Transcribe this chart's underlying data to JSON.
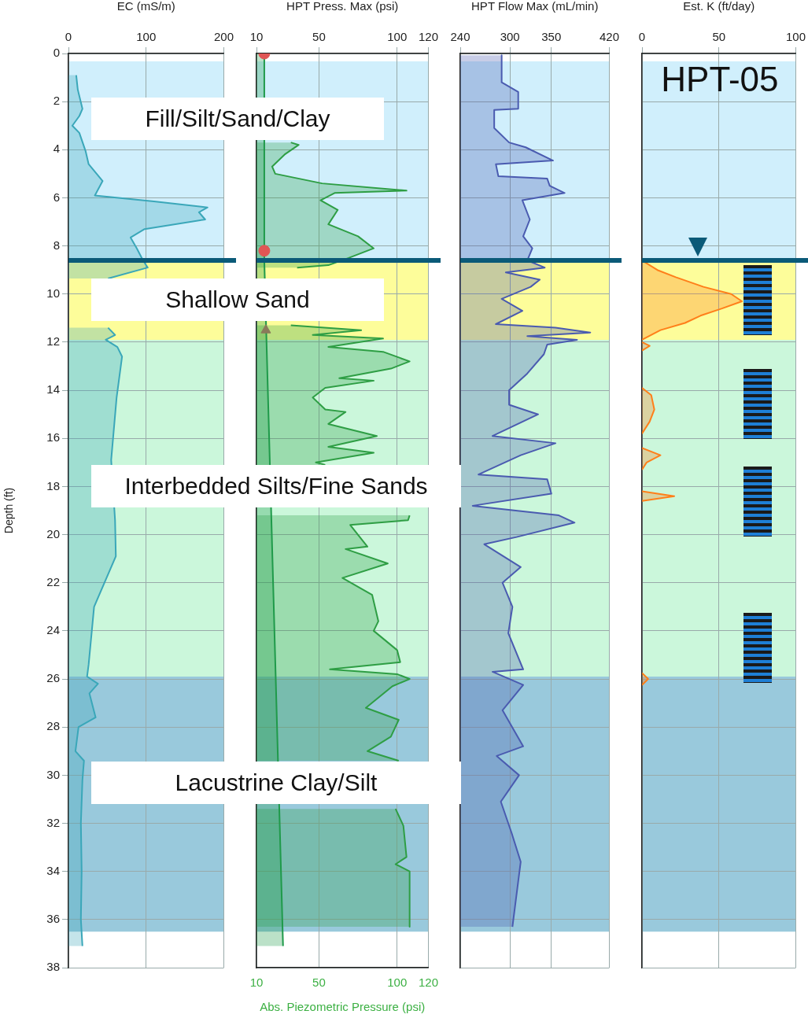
{
  "chart_data": [
    {
      "type": "area",
      "orientation": "horizontal",
      "xlabel": "EC (mS/m)",
      "ylabel": "Depth (ft)",
      "xlim": [
        0,
        200
      ],
      "xticks": [
        0,
        100,
        200
      ],
      "ylim": [
        38,
        0
      ],
      "yticks": [
        0,
        2,
        4,
        6,
        8,
        10,
        12,
        14,
        16,
        18,
        20,
        22,
        24,
        26,
        28,
        30,
        32,
        34,
        36,
        38
      ],
      "grid": true,
      "series": [
        {
          "color": "#3aa7b9",
          "x": [
            0.9,
            1.5,
            2.3,
            2.6,
            3.0,
            3.3,
            4.05,
            4.6,
            5.3,
            5.9,
            6.15,
            6.4,
            6.6,
            6.9,
            7.3,
            7.65,
            8.1,
            8.6,
            8.9,
            9.35,
            9.6,
            10.2,
            10.8,
            11.4,
            11.7,
            11.9,
            12.2,
            12.6,
            14.3,
            16.9,
            19.4,
            20.9,
            23.0,
            25.4,
            25.9,
            26.2,
            26.6,
            27.6,
            28.0,
            29.0,
            29.4,
            30.2,
            32,
            34,
            36,
            37.1
          ],
          "values": [
            10,
            12,
            18,
            14,
            5,
            14,
            22,
            26,
            44,
            34,
            110,
            179,
            168,
            176,
            98,
            80,
            88,
            96,
            102,
            51,
            null,
            null,
            null,
            51,
            60,
            48,
            63,
            69,
            62,
            55,
            60,
            61,
            33,
            26,
            24,
            38,
            27,
            35,
            13,
            9,
            20,
            18,
            16,
            17,
            16,
            18
          ]
        }
      ],
      "bands": [
        {
          "axis": "y",
          "from": 0.33,
          "to": 8.6,
          "label": "Fill/Silt/Sand/Clay",
          "color": "#d0effc"
        },
        {
          "axis": "y",
          "from": 8.6,
          "to": 11.9,
          "label": "Shallow Sand",
          "color": "#fdfd9a"
        },
        {
          "axis": "y",
          "from": 11.9,
          "to": 25.9,
          "label": "Interbedded Silts/Fine Sands",
          "color": "#cbf7db"
        },
        {
          "axis": "y",
          "from": 25.9,
          "to": 36.5,
          "label": "Lacustrine Clay/Silt",
          "color": "#99c9dc"
        }
      ],
      "ref_lines": [
        {
          "axis": "y",
          "value": 8.6,
          "color": "#0b5a78"
        }
      ]
    },
    {
      "type": "area",
      "orientation": "horizontal",
      "xlabel": "HPT Press. Max (psi)",
      "x2label": "Abs. Piezometric Pressure (psi)",
      "xlim": [
        10,
        120
      ],
      "xticks": [
        10,
        50,
        100,
        120
      ],
      "x2lim": [
        10,
        120
      ],
      "x2ticks": [
        10,
        50,
        100,
        120
      ],
      "ylim": [
        38,
        0
      ],
      "yticks": [
        0,
        2,
        4,
        6,
        8,
        10,
        12,
        14,
        16,
        18,
        20,
        22,
        24,
        26,
        28,
        30,
        32,
        34,
        36,
        38
      ],
      "grid": true,
      "tick_labels": "x",
      "series": [
        {
          "color": "#2e9e44",
          "x": [
            3.7,
            3.8,
            4.2,
            4.7,
            5.0,
            5.4,
            5.7,
            5.8,
            6.1,
            6.5,
            7.1,
            7.6,
            8.1,
            8.5,
            8.8,
            8.9,
            9.4,
            10.3,
            11.3,
            11.5,
            11.7,
            11.85,
            12.2,
            12.4,
            12.8,
            13.1,
            13.5,
            13.6,
            13.9,
            14.3,
            14.8,
            14.9,
            15.4,
            15.9,
            16.35,
            16.6,
            17.0,
            17.1,
            18.0,
            19.2,
            19.4,
            19.6,
            20.5,
            20.6,
            21.2,
            21.8,
            22.5,
            23.6,
            24.0,
            24.8,
            25.3,
            25.6,
            25.8,
            26.0,
            26.3,
            27.2,
            27.7,
            28.4,
            29.0,
            29.4,
            30.3,
            31.4,
            32.1,
            33.4,
            33.7,
            34.0,
            36.3
          ],
          "values": [
            32,
            37,
            28,
            20,
            22,
            52,
            106,
            60,
            51,
            62,
            56,
            75,
            85,
            69,
            56,
            36,
            null,
            null,
            32,
            77,
            46,
            91,
            56,
            91,
            108,
            96,
            63,
            85,
            54,
            46,
            54,
            67,
            56,
            87,
            56,
            85,
            48,
            54,
            null,
            108,
            107,
            70,
            81,
            67,
            94,
            65,
            84,
            88,
            85,
            100,
            102,
            57,
            100,
            108,
            97,
            80,
            101,
            96,
            81,
            101,
            null,
            99,
            104,
            106,
            99,
            108,
            108
          ]
        },
        {
          "color": "#1f9a4a",
          "x": [
            0,
            8.6,
            37.1
          ],
          "values": [
            15,
            15,
            27
          ]
        },
        {
          "type": "scatter",
          "marker": "circle",
          "color": "#e05555",
          "x": [
            0,
            8.2
          ],
          "values": [
            15,
            15
          ]
        },
        {
          "type": "scatter",
          "marker": "triangle",
          "color": "#8a7a5a",
          "x": [
            11.5
          ],
          "values": [
            16
          ]
        }
      ],
      "bands": [
        {
          "axis": "y",
          "from": 0.33,
          "to": 8.6,
          "color": "#d0effc"
        },
        {
          "axis": "y",
          "from": 8.6,
          "to": 11.9,
          "color": "#fdfd9a"
        },
        {
          "axis": "y",
          "from": 11.9,
          "to": 25.9,
          "color": "#cbf7db"
        },
        {
          "axis": "y",
          "from": 25.9,
          "to": 36.5,
          "color": "#99c9dc"
        }
      ],
      "ref_lines": [
        {
          "axis": "y",
          "value": 8.6,
          "color": "#0b5a78"
        }
      ]
    },
    {
      "type": "area",
      "orientation": "horizontal",
      "xlabel": "HPT Flow Max (mL/min)",
      "xlim": [
        240,
        420
      ],
      "xticks": [
        240,
        300,
        350,
        420
      ],
      "ylim": [
        38,
        0
      ],
      "yticks": [
        0,
        2,
        4,
        6,
        8,
        10,
        12,
        14,
        16,
        18,
        20,
        22,
        24,
        26,
        28,
        30,
        32,
        34,
        36,
        38
      ],
      "grid": true,
      "tick_labels": "x",
      "series": [
        {
          "color": "#4a5bb0",
          "x": [
            0.07,
            1.2,
            1.6,
            2.3,
            2.35,
            3.1,
            3.7,
            3.9,
            4.45,
            4.6,
            5.1,
            5.2,
            5.5,
            5.8,
            6.1,
            6.9,
            7.6,
            8.1,
            8.6,
            8.9,
            9.1,
            9.4,
            9.7,
            10.2,
            10.7,
            11.25,
            11.4,
            11.6,
            11.75,
            11.9,
            12.1,
            12.5,
            13.3,
            14.0,
            14.6,
            15.0,
            15.9,
            16.2,
            16.7,
            17.5,
            17.7,
            18.3,
            18.8,
            19.2,
            19.5,
            20.1,
            20.4,
            21.35,
            22.0,
            23.0,
            24.1,
            25.6,
            25.7,
            26.25,
            27.3,
            28.8,
            29.2,
            30.0,
            31.1,
            32.4,
            33.6,
            36.3
          ],
          "values": [
            290,
            290,
            310,
            310,
            281,
            281,
            299,
            319,
            352,
            283,
            286,
            345,
            348,
            366,
            315,
            324,
            316,
            327,
            321,
            342,
            295,
            336,
            325,
            290,
            315,
            283,
            355,
            397,
            321,
            381,
            345,
            341,
            321,
            299,
            299,
            334,
            279,
            355,
            313,
            262,
            345,
            350,
            255,
            359,
            378,
            308,
            269,
            313,
            291,
            303,
            298,
            316,
            279,
            316,
            291,
            316,
            284,
            311,
            289,
            302,
            313,
            303
          ]
        }
      ],
      "bands": [
        {
          "axis": "y",
          "from": 0.33,
          "to": 8.6,
          "color": "#d0effc"
        },
        {
          "axis": "y",
          "from": 8.6,
          "to": 11.9,
          "color": "#fdfd9a"
        },
        {
          "axis": "y",
          "from": 11.9,
          "to": 25.9,
          "color": "#cbf7db"
        },
        {
          "axis": "y",
          "from": 25.9,
          "to": 36.5,
          "color": "#99c9dc"
        }
      ],
      "ref_lines": [
        {
          "axis": "y",
          "value": 8.6,
          "color": "#0b5a78"
        }
      ]
    },
    {
      "type": "area",
      "orientation": "horizontal",
      "xlabel": "Est. K (ft/day)",
      "xlim": [
        0,
        100
      ],
      "xticks": [
        0,
        50,
        100
      ],
      "ylim": [
        38,
        0
      ],
      "yticks": [
        0,
        2,
        4,
        6,
        8,
        10,
        12,
        14,
        16,
        18,
        20,
        22,
        24,
        26,
        28,
        30,
        32,
        34,
        36,
        38
      ],
      "grid": true,
      "tick_labels": "x",
      "annotations": [
        "HPT-05"
      ],
      "series": [
        {
          "color": "#ff7f1a",
          "x": [
            8.6,
            9.0,
            9.3,
            9.7,
            10.0,
            10.3,
            10.6,
            10.9,
            11.2,
            11.5,
            11.9,
            11.95,
            12.0,
            12.15,
            12.35,
            13.0,
            13.9,
            14.2,
            14.8,
            15.3,
            15.8,
            16.0,
            16.4,
            16.7,
            17.0,
            17.3,
            17.8,
            18.2,
            18.4,
            18.6,
            19.0,
            25.75,
            26.0,
            26.25
          ],
          "values": [
            0,
            10,
            22,
            40,
            58,
            65,
            52,
            38,
            28,
            12,
            0,
            null,
            0,
            5,
            0,
            null,
            0,
            6,
            8,
            5,
            0,
            null,
            0,
            12,
            3,
            0,
            null,
            0,
            21,
            0,
            null,
            0,
            4,
            0
          ]
        }
      ],
      "bands": [
        {
          "axis": "y",
          "from": 0.33,
          "to": 8.6,
          "color": "#d0effc"
        },
        {
          "axis": "y",
          "from": 8.6,
          "to": 11.9,
          "color": "#fdfd9a"
        },
        {
          "axis": "y",
          "from": 11.9,
          "to": 25.9,
          "color": "#cbf7db"
        },
        {
          "axis": "y",
          "from": 25.9,
          "to": 36.5,
          "color": "#99c9dc"
        }
      ],
      "ref_lines": [
        {
          "axis": "y",
          "value": 8.6,
          "color": "#0b5a78"
        }
      ]
    }
  ]
}
